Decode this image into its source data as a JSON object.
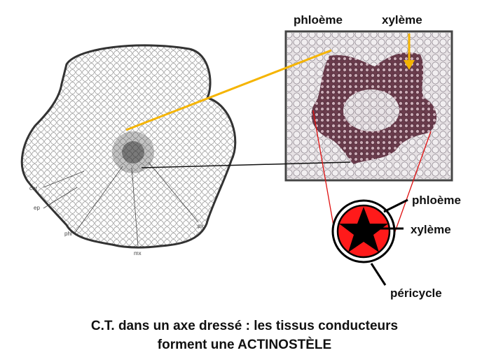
{
  "labels": {
    "top_phloeme": "phloème",
    "top_xyleme": "xylème",
    "sch_phloeme": "phloème",
    "sch_xyleme": "xylème",
    "sch_pericycle": "péricycle",
    "cor": "cor",
    "ep": "ep",
    "phl": "phl",
    "mx": "mx",
    "px": "px"
  },
  "caption": {
    "line1": "C.T. dans un axe dressé : les tissus conducteurs",
    "line2": "forment une ACTINOSTÈLE"
  },
  "colors": {
    "pointer_yellow": "#f5b400",
    "stele_red": "#ff1a1a",
    "star_black": "#000000",
    "photo_bg": "#d9cfd6",
    "xylem_tissue": "#7a2e46"
  }
}
